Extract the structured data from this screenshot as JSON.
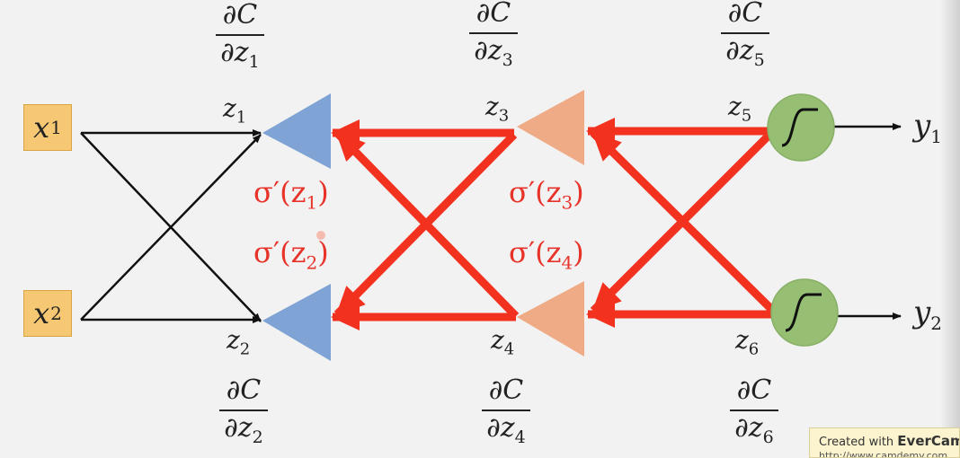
{
  "inputs": [
    {
      "symbol": "x",
      "index": "1"
    },
    {
      "symbol": "x",
      "index": "2"
    }
  ],
  "z_labels": [
    {
      "symbol": "z",
      "index": "1"
    },
    {
      "symbol": "z",
      "index": "2"
    },
    {
      "symbol": "z",
      "index": "3"
    },
    {
      "symbol": "z",
      "index": "4"
    },
    {
      "symbol": "z",
      "index": "5"
    },
    {
      "symbol": "z",
      "index": "6"
    }
  ],
  "partials": [
    {
      "num": "∂C",
      "den_symbol": "∂z",
      "den_index": "1"
    },
    {
      "num": "∂C",
      "den_symbol": "∂z",
      "den_index": "2"
    },
    {
      "num": "∂C",
      "den_symbol": "∂z",
      "den_index": "3"
    },
    {
      "num": "∂C",
      "den_symbol": "∂z",
      "den_index": "4"
    },
    {
      "num": "∂C",
      "den_symbol": "∂z",
      "den_index": "5"
    },
    {
      "num": "∂C",
      "den_symbol": "∂z",
      "den_index": "6"
    }
  ],
  "derivatives": [
    {
      "prefix": "σ′(z",
      "index": "1",
      "suffix": ")"
    },
    {
      "prefix": "σ′(z",
      "index": "2",
      "suffix": ")"
    },
    {
      "prefix": "σ′(z",
      "index": "3",
      "suffix": ")"
    },
    {
      "prefix": "σ′(z",
      "index": "4",
      "suffix": ")"
    }
  ],
  "outputs": [
    {
      "symbol": "y",
      "index": "1"
    },
    {
      "symbol": "y",
      "index": "2"
    }
  ],
  "watermark": {
    "prefix": "Created with ",
    "brand": "EverCam",
    "url": "http://www.camdemy.com"
  },
  "colors": {
    "forward_arrow": "#111111",
    "backward_arrow": "#f2321f",
    "layer1_neuron": "#7ea3d4",
    "layer2_neuron": "#efab86",
    "output_neuron": "#96bf73",
    "input_box": "#f7c873",
    "derivative_text": "#e8332a"
  }
}
